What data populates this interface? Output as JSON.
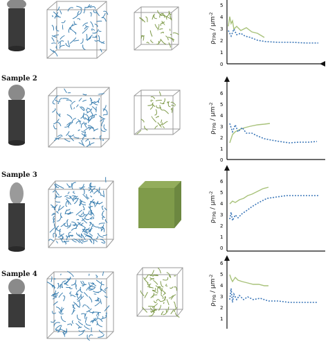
{
  "rows": [
    {
      "label": "",
      "top": -10
    },
    {
      "label": "Sample 2",
      "top": 108
    },
    {
      "label": "Sample 3",
      "top": 233
    },
    {
      "label": "Sample 4",
      "top": 366
    }
  ],
  "colors": {
    "network_blue": "#3b7fb0",
    "network_green": "#7f9b4a",
    "curve_green": "#a8c27a",
    "curve_blue": "#3a76b8",
    "cylinder": "#3a3a3a",
    "cube_edge": "#9a9a9a"
  },
  "y_axis_label_main": "ρ",
  "y_axis_label_sub": "TPB",
  "y_axis_label_unit": " / μm",
  "y_axis_label_exp": "-2",
  "plots": [
    {
      "ticks": [
        "0",
        "1",
        "2",
        "3",
        "4",
        "5"
      ]
    },
    {
      "ticks": [
        "0",
        "1",
        "2",
        "3",
        "4",
        "5",
        "6"
      ]
    },
    {
      "ticks": [
        "0",
        "1",
        "2",
        "3",
        "4",
        "5",
        "6"
      ]
    },
    {
      "ticks": [
        "1",
        "2",
        "3",
        "4",
        "5",
        "6"
      ]
    }
  ]
}
